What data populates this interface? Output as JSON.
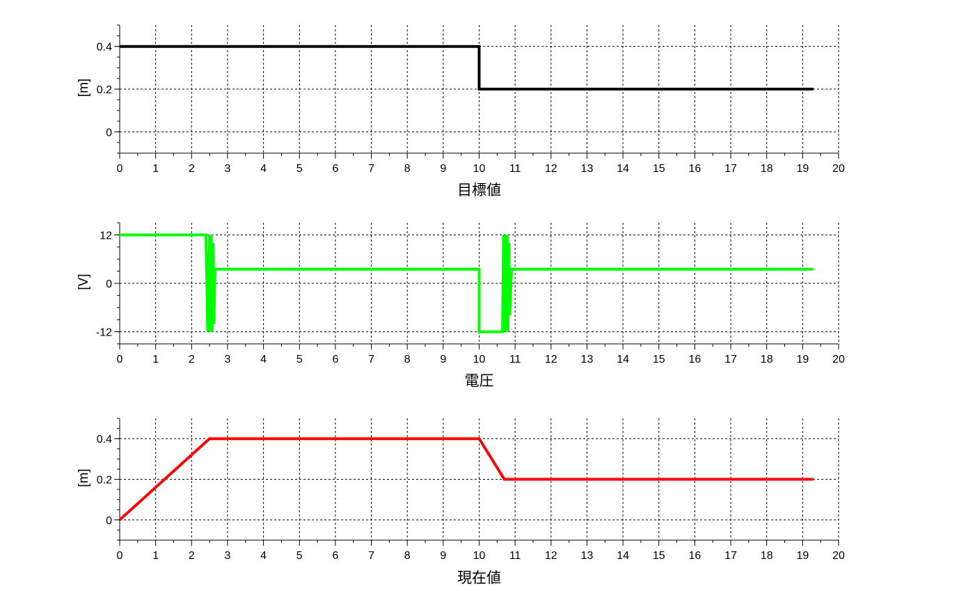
{
  "chart_data": [
    {
      "type": "line",
      "title": "",
      "xlabel": "目標値",
      "ylabel": "[m]",
      "xlim": [
        0,
        20
      ],
      "ylim": [
        -0.1,
        0.5
      ],
      "xticks": [
        0,
        1,
        2,
        3,
        4,
        5,
        6,
        7,
        8,
        9,
        10,
        11,
        12,
        13,
        14,
        15,
        16,
        17,
        18,
        19,
        20
      ],
      "yticks": [
        0,
        0.2,
        0.4
      ],
      "ytick_labels": [
        "0",
        "0.2",
        "0.4"
      ],
      "grid": true,
      "series": [
        {
          "color": "#000000",
          "x": [
            0,
            10,
            10,
            19.3
          ],
          "y": [
            0.4,
            0.4,
            0.2,
            0.2
          ]
        }
      ]
    },
    {
      "type": "line",
      "title": "",
      "xlabel": "電圧",
      "ylabel": "[V]",
      "xlim": [
        0,
        20
      ],
      "ylim": [
        -15,
        15
      ],
      "xticks": [
        0,
        1,
        2,
        3,
        4,
        5,
        6,
        7,
        8,
        9,
        10,
        11,
        12,
        13,
        14,
        15,
        16,
        17,
        18,
        19,
        20
      ],
      "yticks": [
        -12,
        0,
        12
      ],
      "ytick_labels": [
        "-12",
        "0",
        "12"
      ],
      "grid": true,
      "series": [
        {
          "color": "#00ff00",
          "x": [
            0,
            2.4,
            2.45,
            2.5,
            2.52,
            2.55,
            2.57,
            2.6,
            2.62,
            2.65,
            2.7,
            10,
            10,
            10.65,
            10.68,
            10.7,
            10.72,
            10.75,
            10.78,
            10.8,
            10.83,
            10.85,
            10.9,
            19.3
          ],
          "y": [
            12,
            12,
            -12,
            12,
            -12,
            12,
            -12,
            10,
            -10,
            3.5,
            3.5,
            3.5,
            -12,
            -12,
            12,
            -12,
            12,
            -12,
            12,
            -12,
            10,
            -8,
            3.5,
            3.5
          ]
        }
      ]
    },
    {
      "type": "line",
      "title": "",
      "xlabel": "現在値",
      "ylabel": "[m]",
      "xlim": [
        0,
        20
      ],
      "ylim": [
        -0.1,
        0.5
      ],
      "xticks": [
        0,
        1,
        2,
        3,
        4,
        5,
        6,
        7,
        8,
        9,
        10,
        11,
        12,
        13,
        14,
        15,
        16,
        17,
        18,
        19,
        20
      ],
      "yticks": [
        0,
        0.2,
        0.4
      ],
      "ytick_labels": [
        "0",
        "0.2",
        "0.4"
      ],
      "grid": true,
      "series": [
        {
          "color": "#ff0000",
          "x": [
            0,
            2.5,
            10,
            10.7,
            19.3
          ],
          "y": [
            0,
            0.4,
            0.4,
            0.2,
            0.2
          ]
        }
      ]
    }
  ]
}
